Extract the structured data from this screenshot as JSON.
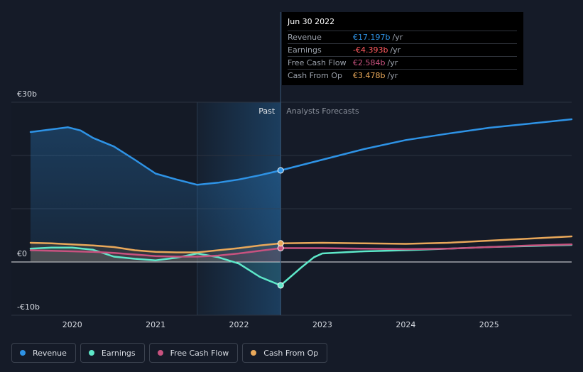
{
  "tooltip": {
    "date": "Jun 30 2022",
    "rows": [
      {
        "label": "Revenue",
        "value": "€17.197b",
        "unit": "/yr",
        "color": "#2e93e6"
      },
      {
        "label": "Earnings",
        "value": "-€4.393b",
        "unit": "/yr",
        "color": "#ff5a5f"
      },
      {
        "label": "Free Cash Flow",
        "value": "€2.584b",
        "unit": "/yr",
        "color": "#c8527f"
      },
      {
        "label": "Cash From Op",
        "value": "€3.478b",
        "unit": "/yr",
        "color": "#e9a85a"
      }
    ]
  },
  "chart_data": {
    "type": "line",
    "x_unit": "year",
    "ylim": [
      -10,
      30
    ],
    "y_ticks": [
      {
        "value": 30,
        "label": "€30b"
      },
      {
        "value": 0,
        "label": "€0"
      },
      {
        "value": -10,
        "label": "-€10b"
      }
    ],
    "x_ticks": [
      "2020",
      "2021",
      "2022",
      "2023",
      "2024",
      "2025"
    ],
    "x_tick_values": [
      2020,
      2021,
      2022,
      2023,
      2024,
      2025
    ],
    "xlim": [
      2019.27,
      2025.99
    ],
    "divider_x": 2022.5,
    "shade_start_x": 2021.5,
    "past_label": "Past",
    "forecast_label": "Analysts Forecasts",
    "grid": true,
    "series": [
      {
        "name": "Revenue",
        "color": "#2e93e6",
        "points": [
          [
            2019.5,
            24.4
          ],
          [
            2019.75,
            24.9
          ],
          [
            2019.95,
            25.3
          ],
          [
            2020.1,
            24.7
          ],
          [
            2020.25,
            23.3
          ],
          [
            2020.5,
            21.7
          ],
          [
            2020.75,
            19.2
          ],
          [
            2021.0,
            16.6
          ],
          [
            2021.25,
            15.5
          ],
          [
            2021.5,
            14.5
          ],
          [
            2021.75,
            14.9
          ],
          [
            2022.0,
            15.5
          ],
          [
            2022.25,
            16.3
          ],
          [
            2022.5,
            17.2
          ],
          [
            2023.0,
            19.2
          ],
          [
            2023.5,
            21.2
          ],
          [
            2024.0,
            22.9
          ],
          [
            2024.5,
            24.1
          ],
          [
            2025.0,
            25.2
          ],
          [
            2025.5,
            26.0
          ],
          [
            2025.99,
            26.8
          ]
        ]
      },
      {
        "name": "Earnings",
        "color": "#5ee8c9",
        "points": [
          [
            2019.5,
            2.5
          ],
          [
            2019.75,
            2.7
          ],
          [
            2020.0,
            2.7
          ],
          [
            2020.25,
            2.3
          ],
          [
            2020.5,
            1.0
          ],
          [
            2020.75,
            0.6
          ],
          [
            2021.0,
            0.3
          ],
          [
            2021.25,
            0.8
          ],
          [
            2021.5,
            1.6
          ],
          [
            2021.75,
            0.9
          ],
          [
            2022.0,
            -0.3
          ],
          [
            2022.25,
            -2.8
          ],
          [
            2022.5,
            -4.4
          ],
          [
            2022.75,
            -1.0
          ],
          [
            2022.9,
            0.9
          ],
          [
            2023.0,
            1.6
          ],
          [
            2023.5,
            2.0
          ],
          [
            2024.0,
            2.2
          ],
          [
            2024.5,
            2.5
          ],
          [
            2025.0,
            2.8
          ],
          [
            2025.5,
            3.0
          ],
          [
            2025.99,
            3.2
          ]
        ]
      },
      {
        "name": "Free Cash Flow",
        "color": "#c8527f",
        "points": [
          [
            2019.5,
            2.2
          ],
          [
            2019.75,
            2.1
          ],
          [
            2020.0,
            2.0
          ],
          [
            2020.25,
            1.9
          ],
          [
            2020.5,
            1.7
          ],
          [
            2020.75,
            1.4
          ],
          [
            2021.0,
            1.1
          ],
          [
            2021.25,
            1.0
          ],
          [
            2021.5,
            1.0
          ],
          [
            2021.75,
            1.2
          ],
          [
            2022.0,
            1.6
          ],
          [
            2022.25,
            2.1
          ],
          [
            2022.5,
            2.6
          ],
          [
            2023.0,
            2.6
          ],
          [
            2023.5,
            2.5
          ],
          [
            2024.0,
            2.4
          ],
          [
            2024.5,
            2.5
          ],
          [
            2025.0,
            2.8
          ],
          [
            2025.5,
            3.1
          ],
          [
            2025.99,
            3.3
          ]
        ]
      },
      {
        "name": "Cash From Op",
        "color": "#e9a85a",
        "points": [
          [
            2019.5,
            3.6
          ],
          [
            2019.75,
            3.5
          ],
          [
            2020.0,
            3.3
          ],
          [
            2020.25,
            3.1
          ],
          [
            2020.5,
            2.8
          ],
          [
            2020.75,
            2.2
          ],
          [
            2021.0,
            1.9
          ],
          [
            2021.25,
            1.8
          ],
          [
            2021.5,
            1.8
          ],
          [
            2021.75,
            2.2
          ],
          [
            2022.0,
            2.6
          ],
          [
            2022.25,
            3.1
          ],
          [
            2022.5,
            3.5
          ],
          [
            2023.0,
            3.6
          ],
          [
            2023.5,
            3.5
          ],
          [
            2024.0,
            3.4
          ],
          [
            2024.5,
            3.6
          ],
          [
            2025.0,
            4.0
          ],
          [
            2025.5,
            4.4
          ],
          [
            2025.99,
            4.8
          ]
        ]
      }
    ]
  },
  "legend": [
    {
      "label": "Revenue",
      "color": "#2e93e6"
    },
    {
      "label": "Earnings",
      "color": "#5ee8c9"
    },
    {
      "label": "Free Cash Flow",
      "color": "#c8527f"
    },
    {
      "label": "Cash From Op",
      "color": "#e9a85a"
    }
  ]
}
